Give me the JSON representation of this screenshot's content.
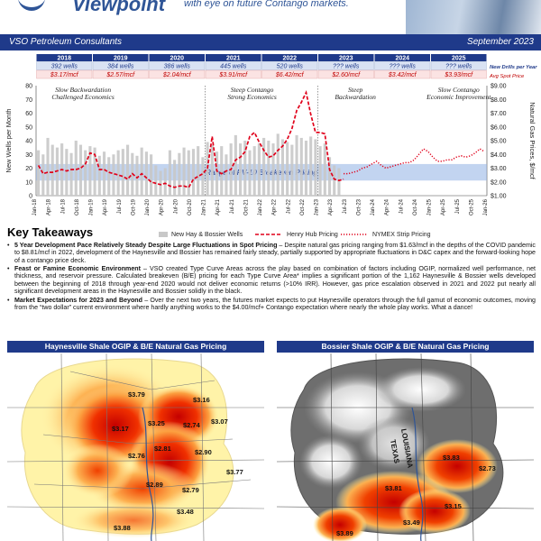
{
  "header": {
    "logo_text": "Viewpoint",
    "subtitle": "with eye on future Contango markets.",
    "company": "VSO Petroleum Consultants",
    "date": "September 2023"
  },
  "chart_data": {
    "type": "line",
    "years": [
      "2018",
      "2019",
      "2020",
      "2021",
      "2022",
      "2023",
      "2024",
      "2025"
    ],
    "new_drills_per_year": [
      "392 wells",
      "384 wells",
      "386 wells",
      "445 wells",
      "520 wells",
      "??? wells",
      "??? wells",
      "??? wells"
    ],
    "avg_spot_price": [
      "$3.17/mcf",
      "$2.57/mcf",
      "$2.04/mcf",
      "$3.91/mcf",
      "$6.42/mcf",
      "$2.60/mcf",
      "$3.42/mcf",
      "$3.93/mcf"
    ],
    "header_labels": {
      "new_drills": "New Drills per Year",
      "avg_price": "Avg Spot Price"
    },
    "ylabel_left": "New Wells per Month",
    "ylabel_right": "Natural Gas Prices, $/mcf",
    "ylim_left": [
      0,
      80
    ],
    "ylim_right": [
      1.0,
      9.0
    ],
    "left_ticks": [
      "0",
      "10",
      "20",
      "30",
      "40",
      "50",
      "60",
      "70",
      "80"
    ],
    "right_ticks": [
      "$1.00",
      "$2.00",
      "$3.00",
      "$4.00",
      "$5.00",
      "$6.00",
      "$7.00",
      "$8.00",
      "$9.00"
    ],
    "x_ticks": [
      "Jan-18",
      "Apr-18",
      "Jul-18",
      "Oct-18",
      "Jan-19",
      "Apr-19",
      "Jul-19",
      "Oct-19",
      "Jan-20",
      "Apr-20",
      "Jul-20",
      "Oct-20",
      "Jan-21",
      "Apr-21",
      "Jul-21",
      "Oct-21",
      "Jan-22",
      "Apr-22",
      "Jul-22",
      "Oct-22",
      "Jan-23",
      "Apr-23",
      "Jul-23",
      "Oct-23",
      "Jan-24",
      "Apr-24",
      "Jul-24",
      "Oct-24",
      "Jan-25",
      "Apr-25",
      "Jul-25",
      "Oct-25",
      "Jan-26"
    ],
    "annotations": [
      {
        "label": "Slow Backwardation\nChallenged Economics",
        "x": 10
      },
      {
        "label": "Steep Contango\nStrong Economics",
        "x": 46
      },
      {
        "label": "Steep\nBackwardation",
        "x": 68
      },
      {
        "label": "Slow Contango\nEconomic Improvement",
        "x": 90
      }
    ],
    "breakeven_label": "Range of PV-10 Breakeven Pricing",
    "breakeven_range": [
      2.1,
      3.3
    ],
    "legend": [
      "New Hay & Bossier Wells",
      "Henry Hub Pricing",
      "NYMEX Strip Pricing"
    ],
    "colors": {
      "wells": "#c8c8c8",
      "henry_hub": "#e0001a",
      "nymex": "#e0001a",
      "band": "#8fb1e4",
      "header": "#1f3a8a"
    },
    "wells_per_month": [
      33,
      30,
      42,
      37,
      35,
      38,
      34,
      31,
      40,
      37,
      33,
      36,
      35,
      29,
      32,
      28,
      30,
      33,
      34,
      37,
      31,
      29,
      35,
      32,
      30,
      22,
      18,
      20,
      33,
      26,
      31,
      35,
      33,
      34,
      36,
      28,
      39,
      37,
      32,
      36,
      30,
      38,
      44,
      38,
      40,
      33,
      36,
      38,
      42,
      40,
      38,
      45,
      41,
      39,
      37,
      44,
      42,
      40,
      43,
      41,
      36,
      38,
      28,
      22,
      20
    ],
    "henry_hub": [
      3.2,
      2.6,
      2.7,
      2.7,
      2.8,
      2.9,
      2.8,
      2.9,
      2.9,
      3.0,
      3.3,
      4.1,
      4.0,
      2.9,
      2.9,
      2.7,
      2.6,
      2.5,
      2.4,
      2.2,
      2.6,
      2.3,
      2.6,
      2.3,
      2.0,
      1.9,
      1.8,
      1.9,
      1.7,
      1.6,
      1.7,
      1.7,
      1.6,
      2.2,
      2.4,
      2.6,
      3.0,
      5.3,
      2.8,
      2.6,
      2.8,
      2.9,
      3.6,
      3.8,
      4.2,
      5.3,
      5.6,
      4.9,
      4.3,
      3.8,
      3.9,
      4.3,
      4.6,
      5.1,
      5.9,
      7.2,
      7.8,
      8.5,
      6.9,
      5.6,
      5.6,
      5.5,
      2.9,
      2.2,
      2.1,
      2.2
    ],
    "nymex": [
      2.6,
      2.6,
      2.7,
      2.8,
      3.0,
      3.1,
      3.3,
      3.5,
      3.2,
      3.0,
      3.1,
      3.2,
      3.3,
      3.4,
      3.4,
      3.6,
      4.0,
      4.4,
      4.2,
      3.8,
      3.5,
      3.5,
      3.6,
      3.6,
      3.8,
      3.9,
      3.8,
      3.9,
      4.1,
      4.4,
      4.2
    ]
  },
  "key_takeaways": {
    "title": "Key Takeaways",
    "items": [
      {
        "bold": "5 Year Development Pace Relatively Steady Despite Large Fluctuations in Spot Pricing",
        "text": " – Despite natural gas pricing ranging from $1.63/mcf in the depths of the COVID pandemic to $8.81/mcf in 2022, development of the Haynesville and Bossier has remained fairly steady, partially supported by appropriate fluctuations in D&C capex and the forward-looking hope of a contango price deck."
      },
      {
        "bold": "Feast or Famine Economic Environment",
        "text": " – VSO created Type Curve Areas across the play based on combination of factors including OGIP, normalized well performance, net thickness, and reservoir pressure. Calculated breakeven (B/E) pricing for each Type Curve Area* implies a significant portion of the 1,162 Haynesville & Bossier wells developed between the beginning of 2018 through year-end 2020 would not deliver economic returns (>10% IRR). However, gas price escalation observed in 2021 and 2022 put nearly all significant development areas in the Haynesville and Bossier solidly in the black."
      },
      {
        "bold": "Market Expectations for 2023 and Beyond",
        "text": " – Over the next two years, the futures market expects to put Haynesville operators through the full gamut of economic outcomes, moving from the “two dollar” current environment where hardly anything works to the $4.00/mcf+ Contango expectation where nearly the whole play works. What a dance!"
      }
    ]
  },
  "maps": {
    "haynesville": {
      "title": "Haynesville Shale OGIP & B/E Natural Gas Pricing",
      "labels": [
        "$3.79",
        "$3.16",
        "$3.17",
        "$3.25",
        "$2.74",
        "$3.07",
        "$2.81",
        "$2.76",
        "$2.90",
        "$3.77",
        "$2.89",
        "$2.79",
        "$3.48",
        "$3.88"
      ]
    },
    "bossier": {
      "title": "Bossier Shale OGIP & B/E Natural Gas Pricing",
      "labels": [
        "LOUISIANA",
        "TEXAS",
        "$3.83",
        "$2.73",
        "$3.81",
        "$3.15",
        "$3.49",
        "$3.89"
      ]
    }
  }
}
